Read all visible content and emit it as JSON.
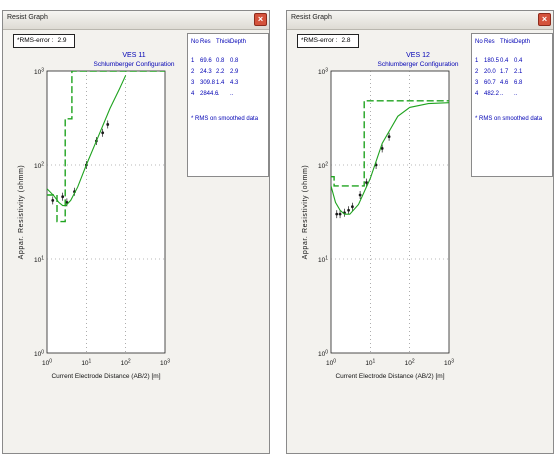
{
  "windows": [
    {
      "title": "Resist Graph",
      "close_glyph": "×",
      "rms_label": "*RMS-error :",
      "rms_value": "2.9",
      "plot_title": "VES 11",
      "plot_subtitle": "Schlumberger Configuration",
      "y_axis_label": "Appar. Resistivity (ohmm)",
      "x_axis_label": "Current Electrode Distance (AB/2) [m]",
      "x_ticks": [
        "10^0",
        "10^1",
        "10^2",
        "10^3"
      ],
      "y_ticks": [
        "10^3",
        "10^2",
        "10^1",
        "10^0"
      ],
      "table_headers": [
        "No",
        "Res",
        "Thick",
        "Depth"
      ],
      "layers": [
        {
          "no": "1",
          "res": "69.6",
          "thick": "0.8",
          "depth": "0.8"
        },
        {
          "no": "2",
          "res": "24.3",
          "thick": "2.2",
          "depth": "2.9"
        },
        {
          "no": "3",
          "res": "309.8",
          "thick": "1.4",
          "depth": "4.3"
        },
        {
          "no": "4",
          "res": "2844.6",
          "thick": "..",
          "depth": ".."
        }
      ],
      "note": "* RMS on smoothed data"
    },
    {
      "title": "Resist Graph",
      "close_glyph": "×",
      "rms_label": "*RMS-error :",
      "rms_value": "2.8",
      "plot_title": "VES 12",
      "plot_subtitle": "Schlumberger Configuration",
      "y_axis_label": "Appar. Resistivity (ohmm)",
      "x_axis_label": "Current Electrode Distance (AB/2) [m]",
      "x_ticks": [
        "10^0",
        "10^1",
        "10^2",
        "10^3"
      ],
      "y_ticks": [
        "10^3",
        "10^2",
        "10^1",
        "10^0"
      ],
      "table_headers": [
        "No",
        "Res",
        "Thick",
        "Depth"
      ],
      "layers": [
        {
          "no": "1",
          "res": "180.5",
          "thick": "0.4",
          "depth": "0.4"
        },
        {
          "no": "2",
          "res": "20.0",
          "thick": "1.7",
          "depth": "2.1"
        },
        {
          "no": "3",
          "res": "60.7",
          "thick": "4.6",
          "depth": "6.8"
        },
        {
          "no": "4",
          "res": "482.2",
          "thick": "..",
          "depth": ".."
        }
      ],
      "note": "* RMS on smoothed data"
    }
  ],
  "colors": {
    "curve": "#1fa31f",
    "model": "#1fa31f",
    "text_blue": "#0000b4",
    "close_red": "#d4533c"
  },
  "icons": [
    "close-icon"
  ],
  "chart_data": [
    {
      "type": "line",
      "title": "VES 11",
      "subtitle": "Schlumberger Configuration",
      "xlabel": "Current Electrode Distance (AB/2) [m]",
      "ylabel": "Appar. Resistivity (ohmm)",
      "x_scale": "log",
      "y_scale": "log",
      "xlim": [
        1,
        1000
      ],
      "ylim": [
        1,
        1000
      ],
      "grid": true,
      "series": [
        {
          "name": "",
          "style": "measured-points",
          "x": [
            1.4,
            2.5,
            3.2,
            5.0,
            10.0,
            18.0,
            26.0,
            35.0
          ],
          "y": [
            42,
            46,
            40,
            52,
            100,
            180,
            220,
            270
          ]
        },
        {
          "name": "",
          "style": "calculated-curve",
          "x": [
            1.0,
            1.5,
            2.0,
            2.5,
            3.0,
            4.0,
            6.0,
            10.0,
            20.0,
            40.0,
            70.0,
            100.0
          ],
          "y": [
            56,
            47,
            40,
            37,
            37,
            42,
            58,
            100,
            200,
            400,
            650,
            900
          ]
        },
        {
          "name": "",
          "style": "model-steps",
          "x": [
            1.0,
            1.8,
            1.8,
            2.9,
            2.9,
            4.3,
            4.3,
            1000
          ],
          "y": [
            48,
            48,
            25,
            25,
            310,
            310,
            1000,
            1000
          ]
        }
      ]
    },
    {
      "type": "line",
      "title": "VES 12",
      "subtitle": "Schlumberger Configuration",
      "xlabel": "Current Electrode Distance (AB/2) [m]",
      "ylabel": "Appar. Resistivity (ohmm)",
      "x_scale": "log",
      "y_scale": "log",
      "xlim": [
        1,
        1000
      ],
      "ylim": [
        1,
        1000
      ],
      "grid": true,
      "series": [
        {
          "name": "",
          "style": "measured-points",
          "x": [
            1.4,
            1.7,
            2.2,
            2.8,
            3.5,
            5.5,
            8.0,
            14.0,
            20.0,
            30.0
          ],
          "y": [
            30,
            30,
            31,
            33,
            36,
            48,
            65,
            100,
            150,
            200
          ]
        },
        {
          "name": "",
          "style": "calculated-curve",
          "x": [
            1.0,
            1.3,
            1.7,
            2.2,
            3.0,
            5.0,
            10.0,
            20.0,
            50.0,
            100.0,
            300.0,
            1000
          ],
          "y": [
            60,
            40,
            33,
            30,
            30,
            38,
            72,
            170,
            330,
            410,
            450,
            460
          ]
        },
        {
          "name": "",
          "style": "model-steps",
          "x": [
            1.0,
            1.2,
            1.2,
            2.4,
            2.4,
            7.0,
            7.0,
            1000
          ],
          "y": [
            75,
            75,
            60,
            60,
            60,
            60,
            482,
            482
          ]
        }
      ]
    }
  ]
}
